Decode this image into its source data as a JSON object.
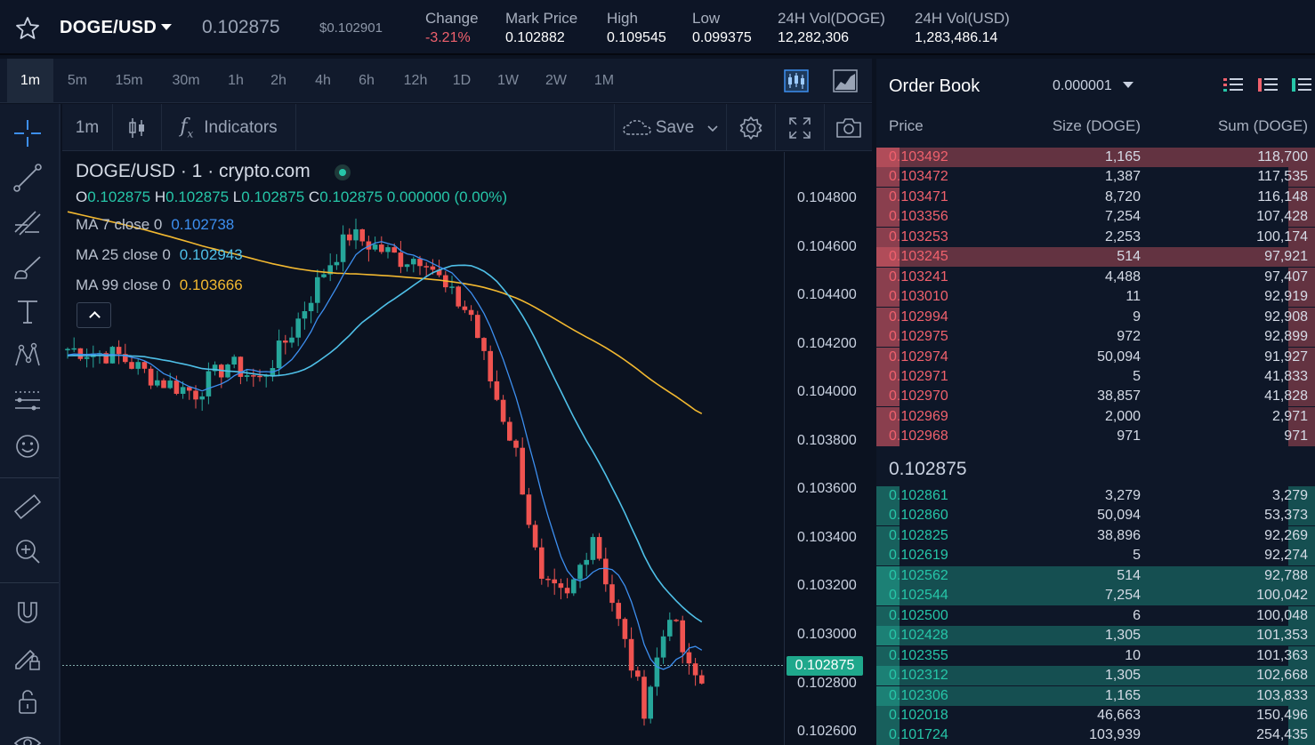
{
  "ticker": {
    "pair": "DOGE/USD",
    "last_price": "0.102875",
    "usd_price": "$0.102901",
    "stats": [
      {
        "label": "Change",
        "value": "-3.21%",
        "negative": true
      },
      {
        "label": "Mark Price",
        "value": "0.102882"
      },
      {
        "label": "High",
        "value": "0.109545"
      },
      {
        "label": "Low",
        "value": "0.099375"
      },
      {
        "label": "24H Vol(DOGE)",
        "value": "12,282,306"
      },
      {
        "label": "24H Vol(USD)",
        "value": "1,283,486.14"
      }
    ]
  },
  "timeframes": [
    "1m",
    "5m",
    "15m",
    "30m",
    "1h",
    "2h",
    "4h",
    "6h",
    "12h",
    "1D",
    "1W",
    "2W",
    "1M"
  ],
  "active_timeframe": "1m",
  "toolbar": {
    "interval": "1m",
    "indicators_label": "Indicators",
    "save_label": "Save"
  },
  "legend": {
    "title": "DOGE/USD · 1 · crypto.com",
    "ohlc": {
      "o_label": "O",
      "o": "0.102875",
      "h_label": "H",
      "h": "0.102875",
      "l_label": "L",
      "l": "0.102875",
      "c_label": "C",
      "c": "0.102875",
      "change": "0.000000 (0.00%)"
    },
    "ma": [
      {
        "label": "MA 7 close 0",
        "value": "0.102738",
        "color": "#3d8ff0"
      },
      {
        "label": "MA 25 close 0",
        "value": "0.102943",
        "color": "#4fc0e8"
      },
      {
        "label": "MA 99 close 0",
        "value": "0.103666",
        "color": "#f2b830"
      }
    ]
  },
  "price_axis": {
    "ticks": [
      "0.104800",
      "0.104600",
      "0.104400",
      "0.104200",
      "0.104000",
      "0.103800",
      "0.103600",
      "0.103400",
      "0.103200",
      "0.103000",
      "0.102800",
      "0.102600"
    ],
    "current": "0.102875"
  },
  "colors": {
    "up": "#26a69a",
    "down": "#ef5350",
    "ma7": "#3d8ff0",
    "ma25": "#4fc0e8",
    "ma99": "#f2b830"
  },
  "order_book": {
    "title": "Order Book",
    "precision": "0.000001",
    "headers": {
      "price": "Price",
      "size": "Size (DOGE)",
      "sum": "Sum (DOGE)"
    },
    "asks": [
      {
        "price": "0.103492",
        "size": "1,165",
        "sum": "118,700",
        "depth": 1.0
      },
      {
        "price": "0.103472",
        "size": "1,387",
        "sum": "117,535",
        "depth": 0.06
      },
      {
        "price": "0.103471",
        "size": "8,720",
        "sum": "116,148",
        "depth": 0.06
      },
      {
        "price": "0.103356",
        "size": "7,254",
        "sum": "107,428",
        "depth": 0.06
      },
      {
        "price": "0.103253",
        "size": "2,253",
        "sum": "100,174",
        "depth": 0.06
      },
      {
        "price": "0.103245",
        "size": "514",
        "sum": "97,921",
        "depth": 1.0
      },
      {
        "price": "0.103241",
        "size": "4,488",
        "sum": "97,407",
        "depth": 0.06
      },
      {
        "price": "0.103010",
        "size": "11",
        "sum": "92,919",
        "depth": 0.06
      },
      {
        "price": "0.102994",
        "size": "9",
        "sum": "92,908",
        "depth": 0.06
      },
      {
        "price": "0.102975",
        "size": "972",
        "sum": "92,899",
        "depth": 0.06
      },
      {
        "price": "0.102974",
        "size": "50,094",
        "sum": "91,927",
        "depth": 0.06
      },
      {
        "price": "0.102971",
        "size": "5",
        "sum": "41,833",
        "depth": 0.06
      },
      {
        "price": "0.102970",
        "size": "38,857",
        "sum": "41,828",
        "depth": 0.06
      },
      {
        "price": "0.102969",
        "size": "2,000",
        "sum": "2,971",
        "depth": 0.06
      },
      {
        "price": "0.102968",
        "size": "971",
        "sum": "971",
        "depth": 0.06
      }
    ],
    "mid_price": "0.102875",
    "bids": [
      {
        "price": "0.102861",
        "size": "3,279",
        "sum": "3,279",
        "depth": 0.06
      },
      {
        "price": "0.102860",
        "size": "50,094",
        "sum": "53,373",
        "depth": 0.06
      },
      {
        "price": "0.102825",
        "size": "38,896",
        "sum": "92,269",
        "depth": 0.06
      },
      {
        "price": "0.102619",
        "size": "5",
        "sum": "92,274",
        "depth": 0.06
      },
      {
        "price": "0.102562",
        "size": "514",
        "sum": "92,788",
        "depth": 1.0
      },
      {
        "price": "0.102544",
        "size": "7,254",
        "sum": "100,042",
        "depth": 1.0
      },
      {
        "price": "0.102500",
        "size": "6",
        "sum": "100,048",
        "depth": 0.06
      },
      {
        "price": "0.102428",
        "size": "1,305",
        "sum": "101,353",
        "depth": 1.0
      },
      {
        "price": "0.102355",
        "size": "10",
        "sum": "101,363",
        "depth": 0.06
      },
      {
        "price": "0.102312",
        "size": "1,305",
        "sum": "102,668",
        "depth": 1.0
      },
      {
        "price": "0.102306",
        "size": "1,165",
        "sum": "103,833",
        "depth": 1.0
      },
      {
        "price": "0.102018",
        "size": "46,663",
        "sum": "150,496",
        "depth": 0.06
      },
      {
        "price": "0.101724",
        "size": "103,939",
        "sum": "254,435",
        "depth": 0.06
      }
    ]
  }
}
